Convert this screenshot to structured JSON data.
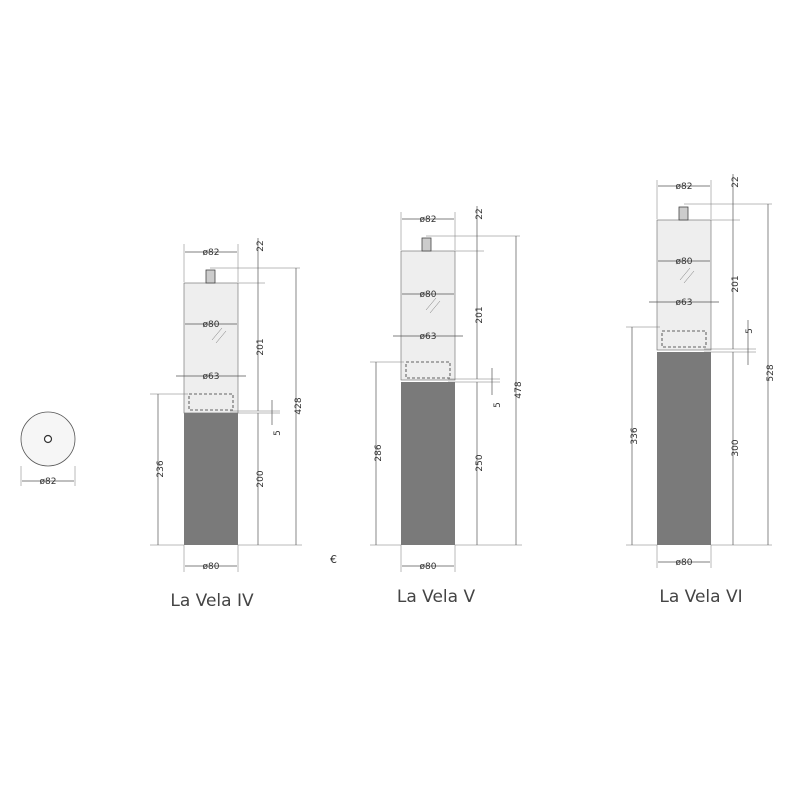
{
  "top_view": {
    "diameter_label": "ø82"
  },
  "stray_mark": "€",
  "colors": {
    "glass": "#eeeeee",
    "base": "#7a7a7a",
    "line": "#555555",
    "text": "#444444"
  },
  "products": [
    {
      "name": "La Vela IV",
      "top_diameter": "ø82",
      "glass_diameter": "ø80",
      "burner_diameter": "ø63",
      "base_diameter": "ø80",
      "top_height": "22",
      "glass_height": "201",
      "gap": "5",
      "base_height": "200",
      "total_height": "428",
      "stand_height": "236"
    },
    {
      "name": "La Vela V",
      "top_diameter": "ø82",
      "glass_diameter": "ø80",
      "burner_diameter": "ø63",
      "base_diameter": "ø80",
      "top_height": "22",
      "glass_height": "201",
      "gap": "5",
      "base_height": "250",
      "total_height": "478",
      "stand_height": "286"
    },
    {
      "name": "La Vela VI",
      "top_diameter": "ø82",
      "glass_diameter": "ø80",
      "burner_diameter": "ø63",
      "base_diameter": "ø80",
      "top_height": "22",
      "glass_height": "201",
      "gap": "5",
      "base_height": "300",
      "total_height": "528",
      "stand_height": "336"
    }
  ]
}
